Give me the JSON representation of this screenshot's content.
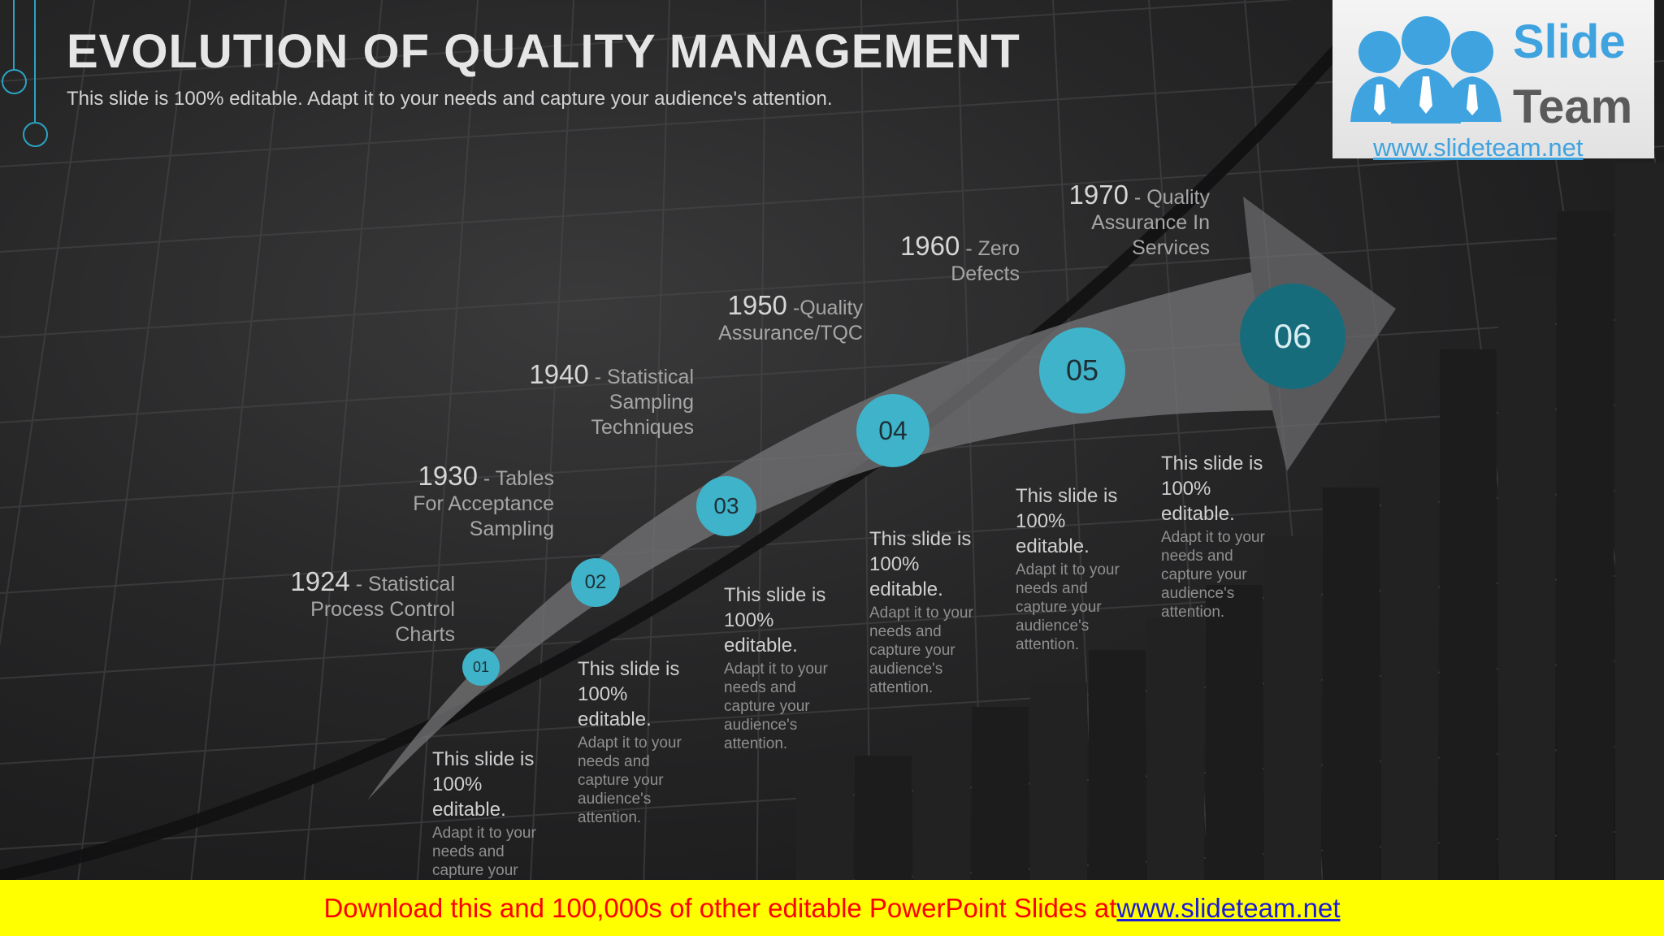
{
  "header": {
    "title": "EVOLUTION OF QUALITY MANAGEMENT",
    "subtitle": "This slide is 100% editable. Adapt it to your needs and capture your audience's attention."
  },
  "logo": {
    "word1": "Slide",
    "word2": "Team",
    "url": "www.slideteam.net"
  },
  "colors": {
    "accent": "#2aa3c2",
    "circle_light": "#3fb3c9",
    "circle_dark": "#176c7c",
    "footer_bg": "#ffff00",
    "footer_text": "#ff0000"
  },
  "milestones": [
    {
      "num": "01",
      "year": "1924",
      "sep": " - ",
      "event_lines": [
        "Statistical",
        "Process Control",
        "Charts"
      ],
      "desc_head": "This slide is 100% editable.",
      "desc_body": "Adapt it to your needs and capture your audience's attention."
    },
    {
      "num": "02",
      "year": "1930",
      "sep": " - ",
      "event_lines": [
        "Tables",
        "For Acceptance",
        "Sampling"
      ],
      "desc_head": "This slide is 100% editable.",
      "desc_body": "Adapt it to your needs and capture your audience's attention."
    },
    {
      "num": "03",
      "year": "1940",
      "sep": " - ",
      "event_lines": [
        "Statistical",
        "Sampling",
        "Techniques"
      ],
      "desc_head": "This slide is 100% editable.",
      "desc_body": "Adapt it to your needs and capture your audience's attention."
    },
    {
      "num": "04",
      "year": "1950",
      "sep": " -",
      "event_lines": [
        "Quality",
        "Assurance/TQC"
      ],
      "desc_head": "This slide is 100% editable.",
      "desc_body": "Adapt it to your needs and capture your audience's attention."
    },
    {
      "num": "05",
      "year": "1960",
      "sep": " - ",
      "event_lines": [
        "Zero",
        "Defects"
      ],
      "desc_head": "This slide is 100% editable.",
      "desc_body": "Adapt it to your needs and capture your audience's attention."
    },
    {
      "num": "06",
      "year": "1970",
      "sep": " - ",
      "event_lines": [
        "Quality",
        "Assurance In",
        "Services"
      ],
      "desc_head": "This slide is 100% editable.",
      "desc_body": "Adapt it to your needs and capture your audience's attention."
    }
  ],
  "footer": {
    "text": "Download this and 100,000s of other editable PowerPoint Slides at ",
    "link": "www.slideteam.net"
  }
}
